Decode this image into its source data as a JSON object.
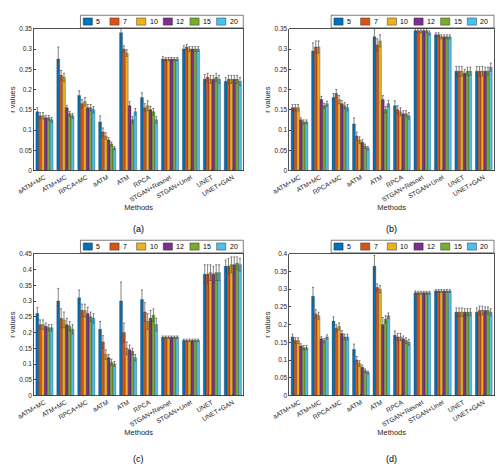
{
  "chart_data": [
    {
      "type": "bar",
      "caption": "(a)",
      "x_label": "Methods",
      "y_label": "r values",
      "grid": false,
      "legend": "top right",
      "categories": [
        "aATM+MC",
        "ATM+MC",
        "RPCA+MC",
        "aATM",
        "ATM",
        "RPCA",
        "STGAN+Resnet",
        "STGAN+Unet",
        "UNET",
        "UNET+GAN"
      ],
      "ylim": [
        0,
        0.35
      ],
      "yticks": [
        0,
        0.05,
        0.1,
        0.15,
        0.2,
        0.25,
        0.3,
        0.35
      ],
      "series": [
        {
          "name": "5",
          "color": "#0072bd",
          "values": [
            0.145,
            0.275,
            0.185,
            0.12,
            0.34,
            0.18,
            0.275,
            0.3,
            0.225,
            0.22
          ],
          "errors": [
            0.01,
            0.03,
            0.012,
            0.015,
            0.025,
            0.012,
            0.006,
            0.008,
            0.012,
            0.01
          ]
        },
        {
          "name": "7",
          "color": "#d95319",
          "values": [
            0.135,
            0.235,
            0.165,
            0.095,
            0.3,
            0.155,
            0.275,
            0.305,
            0.23,
            0.225
          ],
          "errors": [
            0.008,
            0.012,
            0.01,
            0.01,
            0.008,
            0.01,
            0.004,
            0.006,
            0.01,
            0.01
          ]
        },
        {
          "name": "10",
          "color": "#edb120",
          "values": [
            0.135,
            0.23,
            0.17,
            0.085,
            0.29,
            0.16,
            0.275,
            0.3,
            0.225,
            0.225
          ],
          "errors": [
            0.008,
            0.01,
            0.01,
            0.008,
            0.008,
            0.012,
            0.004,
            0.006,
            0.01,
            0.01
          ]
        },
        {
          "name": "12",
          "color": "#7e2f8e",
          "values": [
            0.13,
            0.155,
            0.155,
            0.075,
            0.16,
            0.15,
            0.275,
            0.3,
            0.225,
            0.225
          ],
          "errors": [
            0.006,
            0.006,
            0.008,
            0.006,
            0.01,
            0.008,
            0.004,
            0.006,
            0.01,
            0.01
          ]
        },
        {
          "name": "15",
          "color": "#77ac30",
          "values": [
            0.13,
            0.14,
            0.155,
            0.065,
            0.125,
            0.145,
            0.275,
            0.3,
            0.23,
            0.225
          ],
          "errors": [
            0.006,
            0.006,
            0.008,
            0.005,
            0.008,
            0.008,
            0.004,
            0.006,
            0.01,
            0.01
          ]
        },
        {
          "name": "20",
          "color": "#4dbeee",
          "values": [
            0.125,
            0.135,
            0.15,
            0.055,
            0.145,
            0.125,
            0.275,
            0.3,
            0.225,
            0.22
          ],
          "errors": [
            0.006,
            0.006,
            0.008,
            0.004,
            0.008,
            0.008,
            0.004,
            0.006,
            0.01,
            0.01
          ]
        }
      ]
    },
    {
      "type": "bar",
      "caption": "(b)",
      "x_label": "Methods",
      "y_label": "r values",
      "grid": false,
      "legend": "top right",
      "categories": [
        "aATM+MC",
        "ATM+MC",
        "RPCA+MC",
        "aATM",
        "ATM",
        "RPCA",
        "STGAN+Resnet",
        "STGAN+Unet",
        "UNET",
        "UNET+GAN"
      ],
      "ylim": [
        0,
        0.35
      ],
      "yticks": [
        0,
        0.05,
        0.1,
        0.15,
        0.2,
        0.25,
        0.3,
        0.35
      ],
      "series": [
        {
          "name": "5",
          "color": "#0072bd",
          "values": [
            0.155,
            0.295,
            0.18,
            0.115,
            0.33,
            0.16,
            0.345,
            0.335,
            0.245,
            0.245
          ],
          "errors": [
            0.008,
            0.02,
            0.01,
            0.015,
            0.02,
            0.012,
            0.005,
            0.005,
            0.012,
            0.012
          ]
        },
        {
          "name": "7",
          "color": "#d95319",
          "values": [
            0.155,
            0.305,
            0.19,
            0.085,
            0.31,
            0.15,
            0.345,
            0.335,
            0.245,
            0.245
          ],
          "errors": [
            0.008,
            0.015,
            0.01,
            0.01,
            0.015,
            0.01,
            0.005,
            0.005,
            0.012,
            0.012
          ]
        },
        {
          "name": "10",
          "color": "#edb120",
          "values": [
            0.155,
            0.305,
            0.175,
            0.075,
            0.32,
            0.145,
            0.345,
            0.33,
            0.245,
            0.245
          ],
          "errors": [
            0.008,
            0.015,
            0.01,
            0.008,
            0.015,
            0.01,
            0.005,
            0.005,
            0.012,
            0.012
          ]
        },
        {
          "name": "12",
          "color": "#7e2f8e",
          "values": [
            0.125,
            0.175,
            0.165,
            0.07,
            0.175,
            0.14,
            0.345,
            0.33,
            0.24,
            0.245
          ],
          "errors": [
            0.005,
            0.008,
            0.008,
            0.006,
            0.01,
            0.008,
            0.005,
            0.005,
            0.01,
            0.01
          ]
        },
        {
          "name": "15",
          "color": "#77ac30",
          "values": [
            0.12,
            0.16,
            0.16,
            0.06,
            0.15,
            0.14,
            0.345,
            0.33,
            0.245,
            0.245
          ],
          "errors": [
            0.005,
            0.006,
            0.008,
            0.005,
            0.008,
            0.008,
            0.005,
            0.005,
            0.01,
            0.01
          ]
        },
        {
          "name": "20",
          "color": "#4dbeee",
          "values": [
            0.12,
            0.165,
            0.155,
            0.055,
            0.165,
            0.135,
            0.34,
            0.33,
            0.245,
            0.255
          ],
          "errors": [
            0.005,
            0.006,
            0.008,
            0.004,
            0.008,
            0.008,
            0.005,
            0.005,
            0.01,
            0.01
          ]
        }
      ]
    },
    {
      "type": "bar",
      "caption": "(c)",
      "x_label": "Methods",
      "y_label": "r values",
      "grid": false,
      "legend": "top right",
      "categories": [
        "aATM+MC",
        "ATM+MC",
        "RPCA+MC",
        "aATM",
        "ATM",
        "RPCA",
        "STGAN+Resnet",
        "STGAN+Unet",
        "UNET",
        "UNET+GAN"
      ],
      "ylim": [
        0,
        0.45
      ],
      "yticks": [
        0,
        0.05,
        0.1,
        0.15,
        0.2,
        0.25,
        0.3,
        0.35,
        0.4,
        0.45
      ],
      "series": [
        {
          "name": "5",
          "color": "#0072bd",
          "values": [
            0.26,
            0.3,
            0.31,
            0.21,
            0.3,
            0.305,
            0.185,
            0.175,
            0.385,
            0.41
          ],
          "errors": [
            0.02,
            0.04,
            0.025,
            0.025,
            0.06,
            0.03,
            0.004,
            0.004,
            0.03,
            0.02
          ]
        },
        {
          "name": "7",
          "color": "#d95319",
          "values": [
            0.225,
            0.245,
            0.27,
            0.17,
            0.2,
            0.265,
            0.185,
            0.175,
            0.385,
            0.41
          ],
          "errors": [
            0.015,
            0.03,
            0.02,
            0.02,
            0.03,
            0.03,
            0.004,
            0.004,
            0.03,
            0.025
          ]
        },
        {
          "name": "10",
          "color": "#edb120",
          "values": [
            0.225,
            0.24,
            0.27,
            0.13,
            0.15,
            0.235,
            0.185,
            0.175,
            0.39,
            0.415
          ],
          "errors": [
            0.015,
            0.025,
            0.02,
            0.015,
            0.02,
            0.025,
            0.004,
            0.004,
            0.025,
            0.025
          ]
        },
        {
          "name": "12",
          "color": "#7e2f8e",
          "values": [
            0.22,
            0.225,
            0.26,
            0.12,
            0.145,
            0.245,
            0.185,
            0.175,
            0.385,
            0.415
          ],
          "errors": [
            0.01,
            0.02,
            0.02,
            0.01,
            0.015,
            0.025,
            0.004,
            0.004,
            0.025,
            0.025
          ]
        },
        {
          "name": "15",
          "color": "#77ac30",
          "values": [
            0.215,
            0.22,
            0.25,
            0.105,
            0.14,
            0.255,
            0.185,
            0.175,
            0.39,
            0.42
          ],
          "errors": [
            0.01,
            0.015,
            0.015,
            0.01,
            0.01,
            0.02,
            0.004,
            0.004,
            0.025,
            0.02
          ]
        },
        {
          "name": "20",
          "color": "#4dbeee",
          "values": [
            0.215,
            0.21,
            0.245,
            0.1,
            0.12,
            0.225,
            0.185,
            0.175,
            0.39,
            0.415
          ],
          "errors": [
            0.01,
            0.015,
            0.015,
            0.008,
            0.01,
            0.02,
            0.004,
            0.004,
            0.025,
            0.02
          ]
        }
      ]
    },
    {
      "type": "bar",
      "caption": "(d)",
      "x_label": "Methods",
      "y_label": "r values",
      "grid": false,
      "legend": "top right",
      "categories": [
        "aATM+MC",
        "ATM+MC",
        "RPCA+MC",
        "aATM",
        "ATM",
        "RPCA",
        "STGAN+Resnet",
        "STGAN+Unet",
        "UNET",
        "UNET+GAN"
      ],
      "ylim": [
        0,
        0.4
      ],
      "yticks": [
        0,
        0.05,
        0.1,
        0.15,
        0.2,
        0.25,
        0.3,
        0.35,
        0.4
      ],
      "series": [
        {
          "name": "5",
          "color": "#0072bd",
          "values": [
            0.165,
            0.28,
            0.21,
            0.13,
            0.365,
            0.17,
            0.29,
            0.295,
            0.235,
            0.235
          ],
          "errors": [
            0.008,
            0.025,
            0.012,
            0.015,
            0.03,
            0.012,
            0.005,
            0.004,
            0.012,
            0.012
          ]
        },
        {
          "name": "7",
          "color": "#d95319",
          "values": [
            0.155,
            0.23,
            0.19,
            0.1,
            0.305,
            0.165,
            0.29,
            0.295,
            0.235,
            0.24
          ],
          "errors": [
            0.008,
            0.012,
            0.01,
            0.01,
            0.01,
            0.01,
            0.004,
            0.004,
            0.012,
            0.012
          ]
        },
        {
          "name": "10",
          "color": "#edb120",
          "values": [
            0.155,
            0.225,
            0.195,
            0.09,
            0.3,
            0.165,
            0.29,
            0.295,
            0.235,
            0.24
          ],
          "errors": [
            0.008,
            0.01,
            0.01,
            0.008,
            0.01,
            0.01,
            0.004,
            0.004,
            0.012,
            0.012
          ]
        },
        {
          "name": "12",
          "color": "#7e2f8e",
          "values": [
            0.14,
            0.16,
            0.175,
            0.08,
            0.2,
            0.16,
            0.29,
            0.295,
            0.235,
            0.24
          ],
          "errors": [
            0.006,
            0.006,
            0.008,
            0.006,
            0.02,
            0.008,
            0.004,
            0.004,
            0.01,
            0.01
          ]
        },
        {
          "name": "15",
          "color": "#77ac30",
          "values": [
            0.135,
            0.155,
            0.165,
            0.07,
            0.215,
            0.155,
            0.29,
            0.295,
            0.235,
            0.24
          ],
          "errors": [
            0.006,
            0.006,
            0.008,
            0.005,
            0.01,
            0.008,
            0.004,
            0.004,
            0.01,
            0.01
          ]
        },
        {
          "name": "20",
          "color": "#4dbeee",
          "values": [
            0.135,
            0.165,
            0.165,
            0.065,
            0.225,
            0.15,
            0.29,
            0.295,
            0.235,
            0.235
          ],
          "errors": [
            0.006,
            0.006,
            0.008,
            0.004,
            0.008,
            0.008,
            0.004,
            0.004,
            0.01,
            0.01
          ]
        }
      ]
    }
  ]
}
